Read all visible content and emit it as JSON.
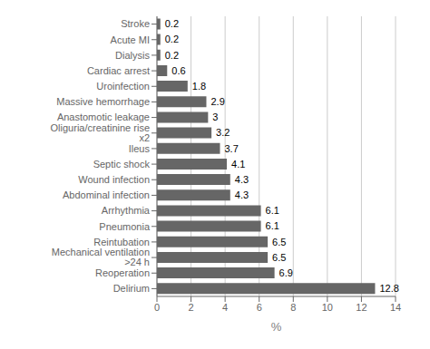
{
  "chart_data": {
    "type": "bar",
    "orientation": "horizontal",
    "categories": [
      "Stroke",
      "Acute MI",
      "Dialysis",
      "Cardiac arrest",
      "Uroinfection",
      "Massive hemorrhage",
      "Anastomotic leakage",
      "Oliguria/creatinine rise x2",
      "Ileus",
      "Septic shock",
      "Wound infection",
      "Abdominal infection",
      "Arrhythmia",
      "Pneumonia",
      "Reintubation",
      "Mechanical ventilation >24 h",
      "Reoperation",
      "Delirium"
    ],
    "values": [
      0.2,
      0.2,
      0.2,
      0.6,
      1.8,
      2.9,
      3.0,
      3.2,
      3.7,
      4.1,
      4.3,
      4.3,
      6.1,
      6.1,
      6.5,
      6.5,
      6.9,
      12.8
    ],
    "color": "#666666",
    "xlabel": "%",
    "xlim": [
      0,
      14
    ],
    "xticks": [
      0,
      2,
      4,
      6,
      8,
      10,
      12,
      14
    ],
    "grid": true,
    "data_labels": true
  }
}
